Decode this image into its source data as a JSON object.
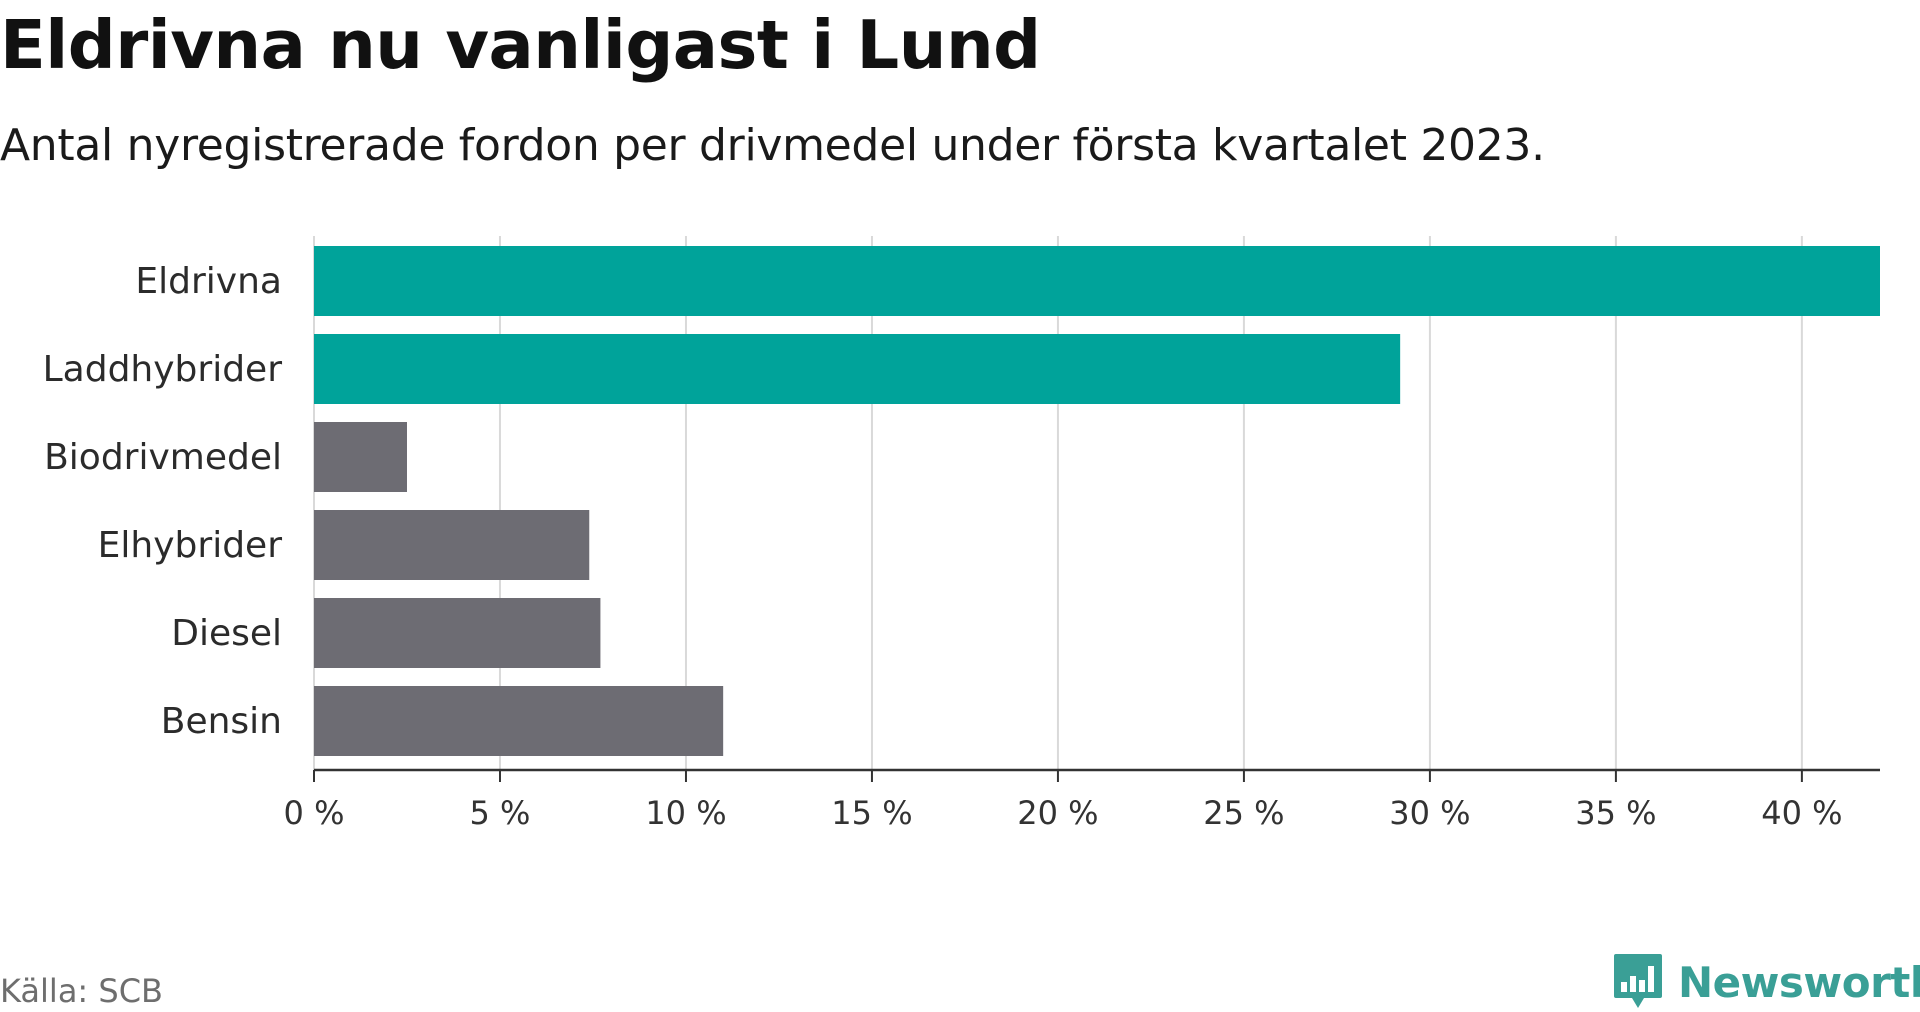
{
  "title": "Eldrivna nu vanligast i Lund",
  "subtitle": "Antal nyregistrerade fordon per drivmedel under första kvartalet 2023.",
  "source": "Källa: SCB",
  "brand": {
    "name": "Newsworthy",
    "icon": "newsworthy-logo-icon",
    "color": "#3a9f96"
  },
  "chart_data": {
    "type": "bar",
    "orientation": "horizontal",
    "categories": [
      "Eldrivna",
      "Laddhybrider",
      "Biodrivmedel",
      "Elhybrider",
      "Diesel",
      "Bensin"
    ],
    "values": [
      42.1,
      29.2,
      2.5,
      7.4,
      7.7,
      11.0
    ],
    "colors": [
      "#00a39a",
      "#00a39a",
      "#6d6c73",
      "#6d6c73",
      "#6d6c73",
      "#6d6c73"
    ],
    "xlim": [
      0,
      42.1
    ],
    "xticks": [
      0,
      5,
      10,
      15,
      20,
      25,
      30,
      35,
      40
    ],
    "xtick_labels": [
      "0 %",
      "5 %",
      "10 %",
      "15 %",
      "20 %",
      "25 %",
      "30 %",
      "35 %",
      "40 %"
    ],
    "grid": "vertical",
    "xlabel": "",
    "ylabel": ""
  }
}
